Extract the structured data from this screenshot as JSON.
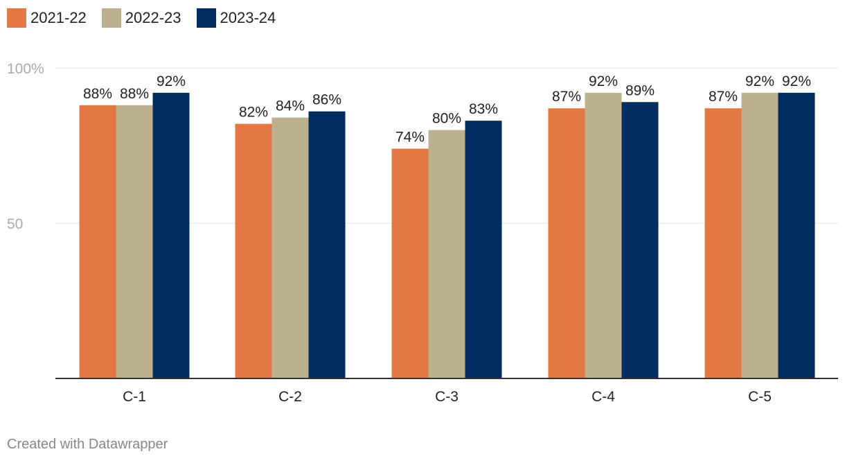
{
  "chart_data": {
    "type": "bar",
    "categories": [
      "C-1",
      "C-2",
      "C-3",
      "C-4",
      "C-5"
    ],
    "series": [
      {
        "name": "2021-22",
        "color": "#e47844",
        "values": [
          88,
          82,
          74,
          87,
          87
        ],
        "labels": [
          "88%",
          "82%",
          "74%",
          "87%",
          "87%"
        ]
      },
      {
        "name": "2022-23",
        "color": "#bdb08f",
        "values": [
          88,
          84,
          80,
          92,
          92
        ],
        "labels": [
          "88%",
          "84%",
          "80%",
          "92%",
          "92%"
        ]
      },
      {
        "name": "2023-24",
        "color": "#002c5f",
        "values": [
          92,
          86,
          83,
          89,
          92
        ],
        "labels": [
          "92%",
          "86%",
          "83%",
          "89%",
          "92%"
        ]
      }
    ],
    "y_ticks": [
      {
        "value": 100,
        "label": "100%"
      },
      {
        "value": 50,
        "label": "50"
      }
    ],
    "ylim": [
      0,
      100
    ],
    "grid": true,
    "legend_position": "top-left"
  },
  "footer": {
    "credit": "Created with Datawrapper"
  }
}
